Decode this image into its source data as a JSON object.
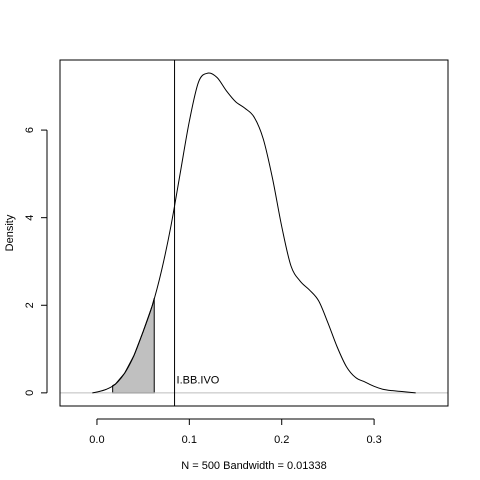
{
  "chart_data": {
    "type": "line",
    "xlabel": "N = 500   Bandwidth = 0.01338",
    "ylabel": "Density",
    "xlim": [
      -0.04,
      0.38
    ],
    "ylim": [
      -0.3,
      7.6
    ],
    "x_ticks": [
      0.0,
      0.1,
      0.2,
      0.3
    ],
    "x_tick_labels": [
      "0.0",
      "0.1",
      "0.2",
      "0.3"
    ],
    "y_ticks": [
      0,
      2,
      4,
      6
    ],
    "y_tick_labels": [
      "0",
      "2",
      "4",
      "6"
    ],
    "grid": false,
    "legend": "none",
    "series": [
      {
        "x": [
          -0.005,
          0.0,
          0.01,
          0.02,
          0.03,
          0.04,
          0.05,
          0.06,
          0.07,
          0.08,
          0.09,
          0.1,
          0.11,
          0.12,
          0.13,
          0.14,
          0.15,
          0.16,
          0.17,
          0.18,
          0.19,
          0.2,
          0.21,
          0.22,
          0.23,
          0.24,
          0.25,
          0.26,
          0.27,
          0.28,
          0.29,
          0.3,
          0.31,
          0.32,
          0.33,
          0.345
        ],
        "y": [
          0.0,
          0.02,
          0.08,
          0.2,
          0.45,
          0.85,
          1.4,
          2.0,
          2.8,
          3.8,
          5.0,
          6.2,
          7.1,
          7.3,
          7.2,
          6.9,
          6.65,
          6.5,
          6.3,
          5.8,
          4.9,
          3.8,
          2.9,
          2.55,
          2.35,
          2.1,
          1.6,
          1.05,
          0.6,
          0.35,
          0.25,
          0.15,
          0.08,
          0.05,
          0.03,
          0.0
        ]
      }
    ],
    "shaded_region": {
      "from": 0.017,
      "to": 0.062,
      "fill": "#c0c0c0"
    },
    "reference_line": {
      "x": 0.084,
      "label": "I.BB.IVO"
    },
    "baseline": {
      "y": 0,
      "color": "#bebebe"
    },
    "line_color": "#000000"
  }
}
